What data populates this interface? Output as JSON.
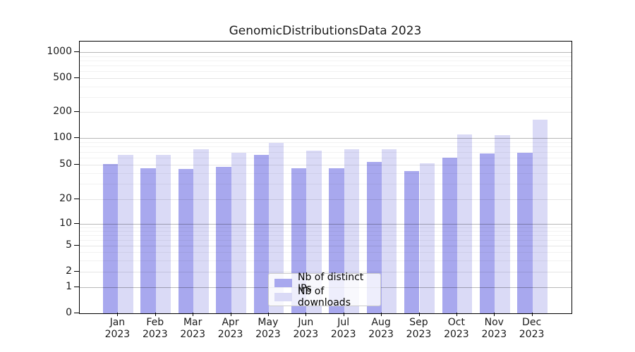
{
  "title": "GenomicDistributionsData 2023",
  "chart_data": {
    "type": "bar",
    "title": "GenomicDistributionsData 2023",
    "categories": [
      "Jan 2023",
      "Feb 2023",
      "Mar 2023",
      "Apr 2023",
      "May 2023",
      "Jun 2023",
      "Jul 2023",
      "Aug 2023",
      "Sep 2023",
      "Oct 2023",
      "Nov 2023",
      "Dec 2023"
    ],
    "series": [
      {
        "name": "Nb of distinct IPs",
        "color": "#a8a8ee",
        "values": [
          52,
          46,
          45,
          48,
          65,
          46,
          46,
          55,
          43,
          61,
          68,
          69
        ]
      },
      {
        "name": "Nb of downloads",
        "color": "#dadaf6",
        "values": [
          66,
          66,
          75,
          69,
          89,
          73,
          75,
          76,
          53,
          112,
          109,
          164
        ]
      }
    ],
    "xlabel": "",
    "ylabel": "",
    "yscale": "symlog-like",
    "ytick_values": [
      0,
      1,
      2,
      5,
      10,
      20,
      50,
      100,
      200,
      500,
      1000
    ],
    "ytick_labels": [
      "0",
      "1",
      "2",
      "5",
      "10",
      "20",
      "50",
      "100",
      "200",
      "500",
      "1000"
    ],
    "ylim": [
      0,
      1150
    ],
    "grid": "horizontal major and minor gridlines",
    "legend_position": "bottom-center",
    "legend_entries": [
      "Nb of distinct IPs",
      "Nb of downloads"
    ]
  }
}
